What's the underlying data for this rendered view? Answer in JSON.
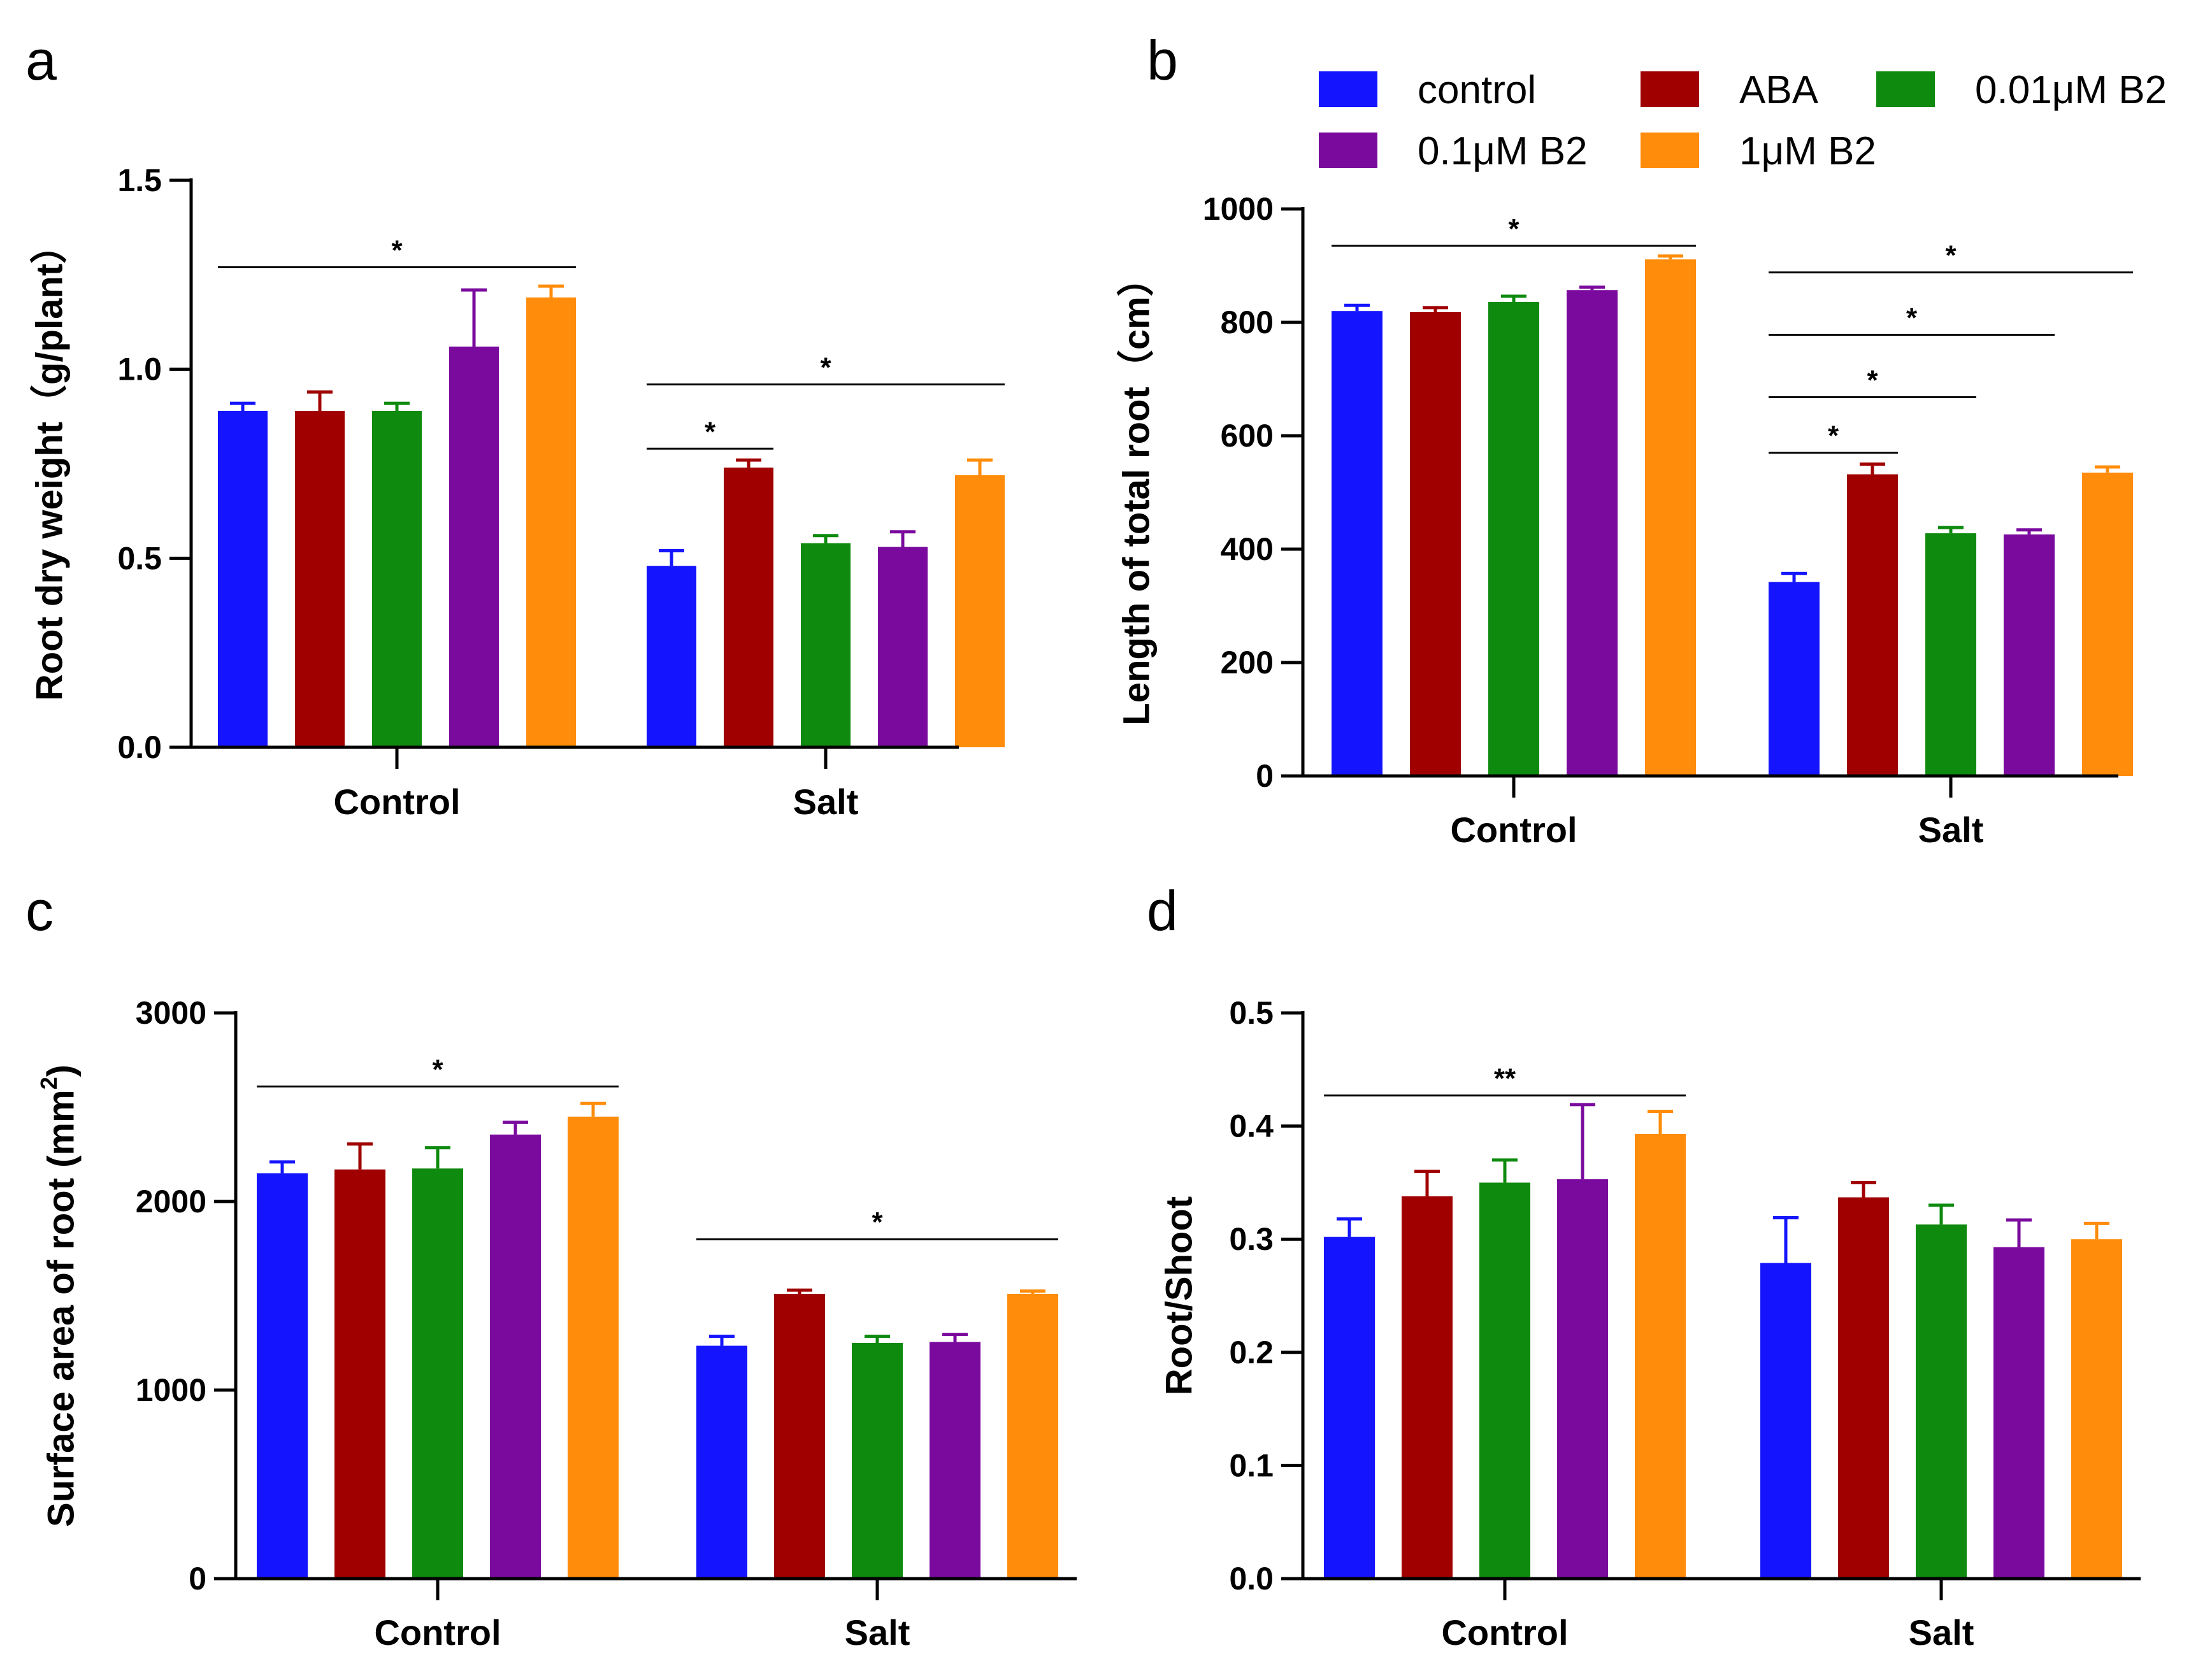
{
  "legend": {
    "items": [
      {
        "name": "control",
        "color": "#1414ff"
      },
      {
        "name": "ABA",
        "color": "#a00000"
      },
      {
        "name": "0.01μM B2",
        "color": "#0e8a0e"
      },
      {
        "name": "0.1μM B2",
        "color": "#7a0a9e"
      },
      {
        "name": "1μM B2",
        "color": "#ff8c0a"
      }
    ]
  },
  "chart_data": [
    {
      "panel": "a",
      "type": "bar",
      "title": "",
      "xlabel": "",
      "ylabel": "Root dry weight（g/plant）",
      "ylim": [
        0,
        1.5
      ],
      "yticks": [
        0.0,
        0.5,
        1.0,
        1.5
      ],
      "ytick_labels": [
        "0.0",
        "0.5",
        "1.0",
        "1.5"
      ],
      "categories": [
        "Control",
        "Salt"
      ],
      "series": [
        {
          "name": "control",
          "values": [
            0.89,
            0.48
          ],
          "errors": [
            0.02,
            0.04
          ]
        },
        {
          "name": "ABA",
          "values": [
            0.89,
            0.74
          ],
          "errors": [
            0.05,
            0.02
          ]
        },
        {
          "name": "0.01μM B2",
          "values": [
            0.89,
            0.54
          ],
          "errors": [
            0.02,
            0.02
          ]
        },
        {
          "name": "0.1μM B2",
          "values": [
            1.06,
            0.53
          ],
          "errors": [
            0.15,
            0.04
          ]
        },
        {
          "name": "1μM B2",
          "values": [
            1.19,
            0.72
          ],
          "errors": [
            0.03,
            0.04
          ]
        }
      ],
      "significance": [
        {
          "group": 0,
          "from": 0,
          "to": 4,
          "y": 1.27,
          "label": "*"
        },
        {
          "group": 1,
          "from": 0,
          "to": 1,
          "y": 0.79,
          "label": "*"
        },
        {
          "group": 1,
          "from": 0,
          "to": 4,
          "y": 0.96,
          "label": "*"
        }
      ]
    },
    {
      "panel": "b",
      "type": "bar",
      "title": "",
      "xlabel": "",
      "ylabel": "Length of total root（cm）",
      "ylim": [
        0,
        1000
      ],
      "yticks": [
        0,
        200,
        400,
        600,
        800,
        1000
      ],
      "ytick_labels": [
        "0",
        "200",
        "400",
        "600",
        "800",
        "1000"
      ],
      "categories": [
        "Control",
        "Salt"
      ],
      "series": [
        {
          "name": "control",
          "values": [
            820,
            342
          ],
          "errors": [
            10,
            15
          ]
        },
        {
          "name": "ABA",
          "values": [
            818,
            532
          ],
          "errors": [
            8,
            18
          ]
        },
        {
          "name": "0.01μM B2",
          "values": [
            836,
            428
          ],
          "errors": [
            10,
            10
          ]
        },
        {
          "name": "0.1μM B2",
          "values": [
            857,
            426
          ],
          "errors": [
            5,
            8
          ]
        },
        {
          "name": "1μM B2",
          "values": [
            911,
            535
          ],
          "errors": [
            6,
            10
          ]
        }
      ],
      "significance": [
        {
          "group": 0,
          "from": 0,
          "to": 4,
          "y": 935,
          "label": "*"
        },
        {
          "group": 1,
          "from": 0,
          "to": 4,
          "y": 888,
          "label": "*"
        },
        {
          "group": 1,
          "from": 0,
          "to": 3,
          "y": 778,
          "label": "*"
        },
        {
          "group": 1,
          "from": 0,
          "to": 2,
          "y": 668,
          "label": "*"
        },
        {
          "group": 1,
          "from": 0,
          "to": 1,
          "y": 570,
          "label": "*"
        }
      ]
    },
    {
      "panel": "c",
      "type": "bar",
      "title": "",
      "xlabel": "",
      "ylabel": "Surface area of root (mm",
      "ylabel_superscript": "2",
      "ylabel_suffix": ")",
      "ylim": [
        0,
        3000
      ],
      "yticks": [
        0,
        1000,
        2000,
        3000
      ],
      "ytick_labels": [
        "0",
        "1000",
        "2000",
        "3000"
      ],
      "categories": [
        "Control",
        "Salt"
      ],
      "series": [
        {
          "name": "control",
          "values": [
            2150,
            1235
          ],
          "errors": [
            60,
            50
          ]
        },
        {
          "name": "ABA",
          "values": [
            2170,
            1510
          ],
          "errors": [
            135,
            20
          ]
        },
        {
          "name": "0.01μM B2",
          "values": [
            2175,
            1250
          ],
          "errors": [
            110,
            35
          ]
        },
        {
          "name": "0.1μM B2",
          "values": [
            2355,
            1255
          ],
          "errors": [
            65,
            40
          ]
        },
        {
          "name": "1μM B2",
          "values": [
            2450,
            1510
          ],
          "errors": [
            70,
            15
          ]
        }
      ],
      "significance": [
        {
          "group": 0,
          "from": 0,
          "to": 4,
          "y": 2610,
          "label": "*"
        },
        {
          "group": 1,
          "from": 0,
          "to": 4,
          "y": 1800,
          "label": "*"
        }
      ]
    },
    {
      "panel": "d",
      "type": "bar",
      "title": "",
      "xlabel": "",
      "ylabel": "Root/Shoot",
      "ylim": [
        0,
        0.5
      ],
      "yticks": [
        0.0,
        0.1,
        0.2,
        0.3,
        0.4,
        0.5
      ],
      "ytick_labels": [
        "0.0",
        "0.1",
        "0.2",
        "0.3",
        "0.4",
        "0.5"
      ],
      "categories": [
        "Control",
        "Salt"
      ],
      "series": [
        {
          "name": "control",
          "values": [
            0.302,
            0.279
          ],
          "errors": [
            0.016,
            0.04
          ]
        },
        {
          "name": "ABA",
          "values": [
            0.338,
            0.337
          ],
          "errors": [
            0.022,
            0.013
          ]
        },
        {
          "name": "0.01μM B2",
          "values": [
            0.35,
            0.313
          ],
          "errors": [
            0.02,
            0.017
          ]
        },
        {
          "name": "0.1μM B2",
          "values": [
            0.353,
            0.293
          ],
          "errors": [
            0.066,
            0.024
          ]
        },
        {
          "name": "1μM B2",
          "values": [
            0.393,
            0.3
          ],
          "errors": [
            0.02,
            0.014
          ]
        }
      ],
      "significance": [
        {
          "group": 0,
          "from": 0,
          "to": 4,
          "y": 0.427,
          "label": "**"
        }
      ]
    }
  ]
}
